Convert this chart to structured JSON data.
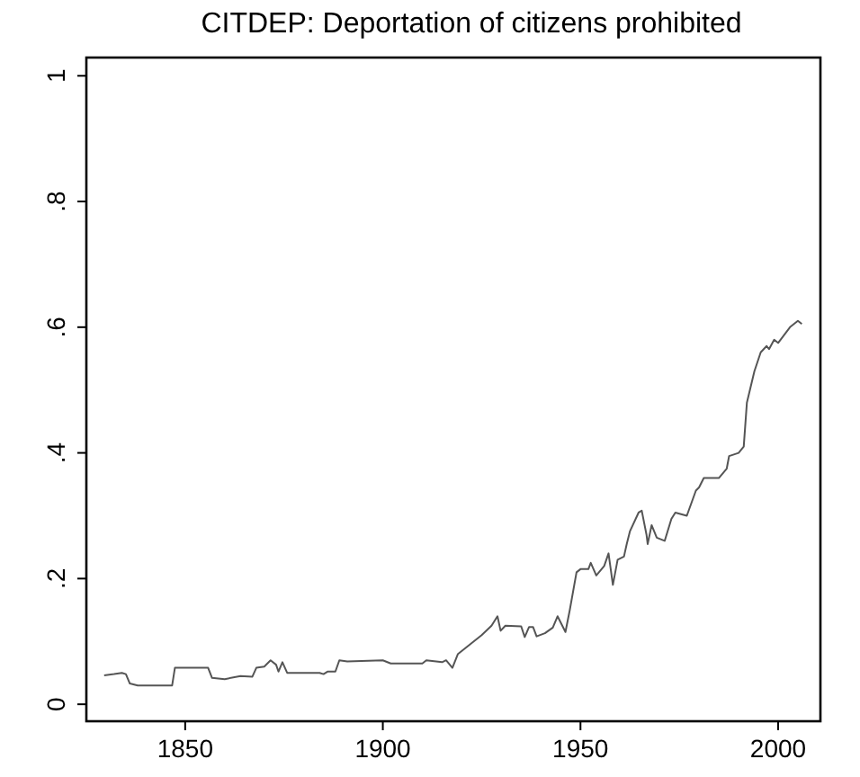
{
  "chart_data": {
    "type": "line",
    "title": "CITDEP: Deportation of citizens prohibited",
    "xlim": [
      1825,
      2010.7
    ],
    "ylim": [
      -0.027,
      1.029
    ],
    "xticks": [
      1850,
      1900,
      1950,
      2000
    ],
    "yticks": [
      0,
      {
        "value": 0.2,
        "label": ".2"
      },
      {
        "value": 0.4,
        "label": ".4"
      },
      {
        "value": 0.6,
        "label": ".6"
      },
      {
        "value": 0.8,
        "label": ".8"
      },
      1
    ],
    "grid": false,
    "marker": "none",
    "line_style": "solid",
    "series": [
      {
        "color": "#555555",
        "x": [
          1829.5,
          1832,
          1834,
          1835,
          1836,
          1838,
          1846.7,
          1847.4,
          1855.8,
          1856.8,
          1860,
          1864,
          1867,
          1868,
          1870,
          1871.6,
          1873,
          1873.6,
          1874.6,
          1875.8,
          1884,
          1885,
          1886,
          1888,
          1889,
          1891,
          1900,
          1902,
          1910,
          1911,
          1915,
          1916,
          1917.6,
          1919,
          1921,
          1923,
          1925,
          1927.5,
          1929,
          1929.8,
          1931,
          1935,
          1935.9,
          1937,
          1938,
          1938.9,
          1941,
          1943,
          1944.2,
          1946.2,
          1947.3,
          1949,
          1950,
          1952,
          1952.6,
          1954,
          1956,
          1957.1,
          1958.2,
          1959.4,
          1961,
          1961.7,
          1962.5,
          1964.7,
          1965.5,
          1966.7,
          1967,
          1968,
          1969.3,
          1971.3,
          1973,
          1974,
          1976.9,
          1979.2,
          1980,
          1981.2,
          1985,
          1987,
          1987.6,
          1990,
          1991.3,
          1992.1,
          1994,
          1995.6,
          1997.1,
          1997.7,
          1999,
          2000,
          2003,
          2005,
          2006
        ],
        "values": [
          0.046,
          0.048,
          0.05,
          0.048,
          0.033,
          0.03,
          0.03,
          0.058,
          0.058,
          0.042,
          0.04,
          0.045,
          0.044,
          0.058,
          0.06,
          0.07,
          0.063,
          0.052,
          0.067,
          0.05,
          0.05,
          0.048,
          0.052,
          0.052,
          0.07,
          0.068,
          0.07,
          0.065,
          0.065,
          0.07,
          0.067,
          0.07,
          0.058,
          0.08,
          0.09,
          0.1,
          0.11,
          0.125,
          0.14,
          0.117,
          0.125,
          0.124,
          0.107,
          0.123,
          0.123,
          0.108,
          0.113,
          0.122,
          0.14,
          0.115,
          0.15,
          0.21,
          0.215,
          0.215,
          0.225,
          0.205,
          0.22,
          0.24,
          0.19,
          0.23,
          0.235,
          0.255,
          0.275,
          0.305,
          0.308,
          0.27,
          0.255,
          0.285,
          0.265,
          0.26,
          0.295,
          0.305,
          0.3,
          0.34,
          0.345,
          0.36,
          0.36,
          0.375,
          0.395,
          0.4,
          0.41,
          0.48,
          0.53,
          0.56,
          0.57,
          0.565,
          0.58,
          0.575,
          0.6,
          0.61,
          0.605
        ]
      }
    ]
  }
}
